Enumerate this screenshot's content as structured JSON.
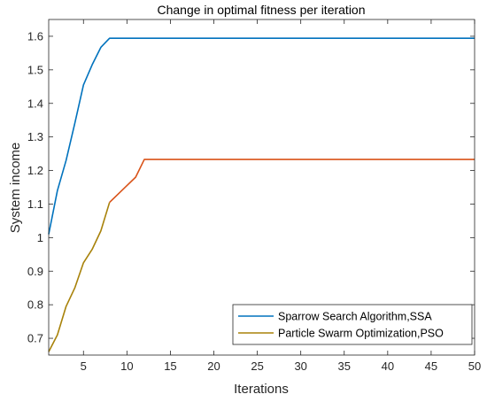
{
  "chart_data": {
    "type": "line",
    "title": "Change in optimal fitness per iteration",
    "xlabel": "Iterations",
    "ylabel": "System income",
    "xlim": [
      1,
      50
    ],
    "ylim": [
      0.65,
      1.65
    ],
    "x_ticks": [
      5,
      10,
      15,
      20,
      25,
      30,
      35,
      40,
      45,
      50
    ],
    "y_ticks": [
      0.7,
      0.8,
      0.9,
      1.0,
      1.1,
      1.2,
      1.3,
      1.4,
      1.5,
      1.6
    ],
    "y_tick_labels": [
      "0.7",
      "0.8",
      "0.9",
      "1",
      "1.1",
      "1.2",
      "1.3",
      "1.4",
      "1.5",
      "1.6"
    ],
    "x_tick_labels": [
      "5",
      "10",
      "15",
      "20",
      "25",
      "30",
      "35",
      "40",
      "45",
      "50"
    ],
    "grid": false,
    "legend_position": "bottom-right",
    "series": [
      {
        "name": "Sparrow Search Algorithm,SSA",
        "color": "#0072BD",
        "x": [
          1,
          2,
          3,
          4,
          5,
          6,
          7,
          8,
          9,
          50
        ],
        "y": [
          1.01,
          1.14,
          1.23,
          1.34,
          1.455,
          1.515,
          1.567,
          1.594,
          1.594,
          1.594
        ]
      },
      {
        "name": "Particle Swarm Optimization,PSO",
        "color": "#A8820A",
        "segment_colors": [
          "#A8820A",
          "#D95319"
        ],
        "color_split_x": 8,
        "x": [
          1,
          2,
          3,
          4,
          5,
          6,
          7,
          8,
          9,
          10,
          11,
          12,
          50
        ],
        "y": [
          0.66,
          0.71,
          0.795,
          0.85,
          0.925,
          0.965,
          1.02,
          1.105,
          1.13,
          1.155,
          1.18,
          1.233,
          1.233
        ]
      }
    ]
  }
}
